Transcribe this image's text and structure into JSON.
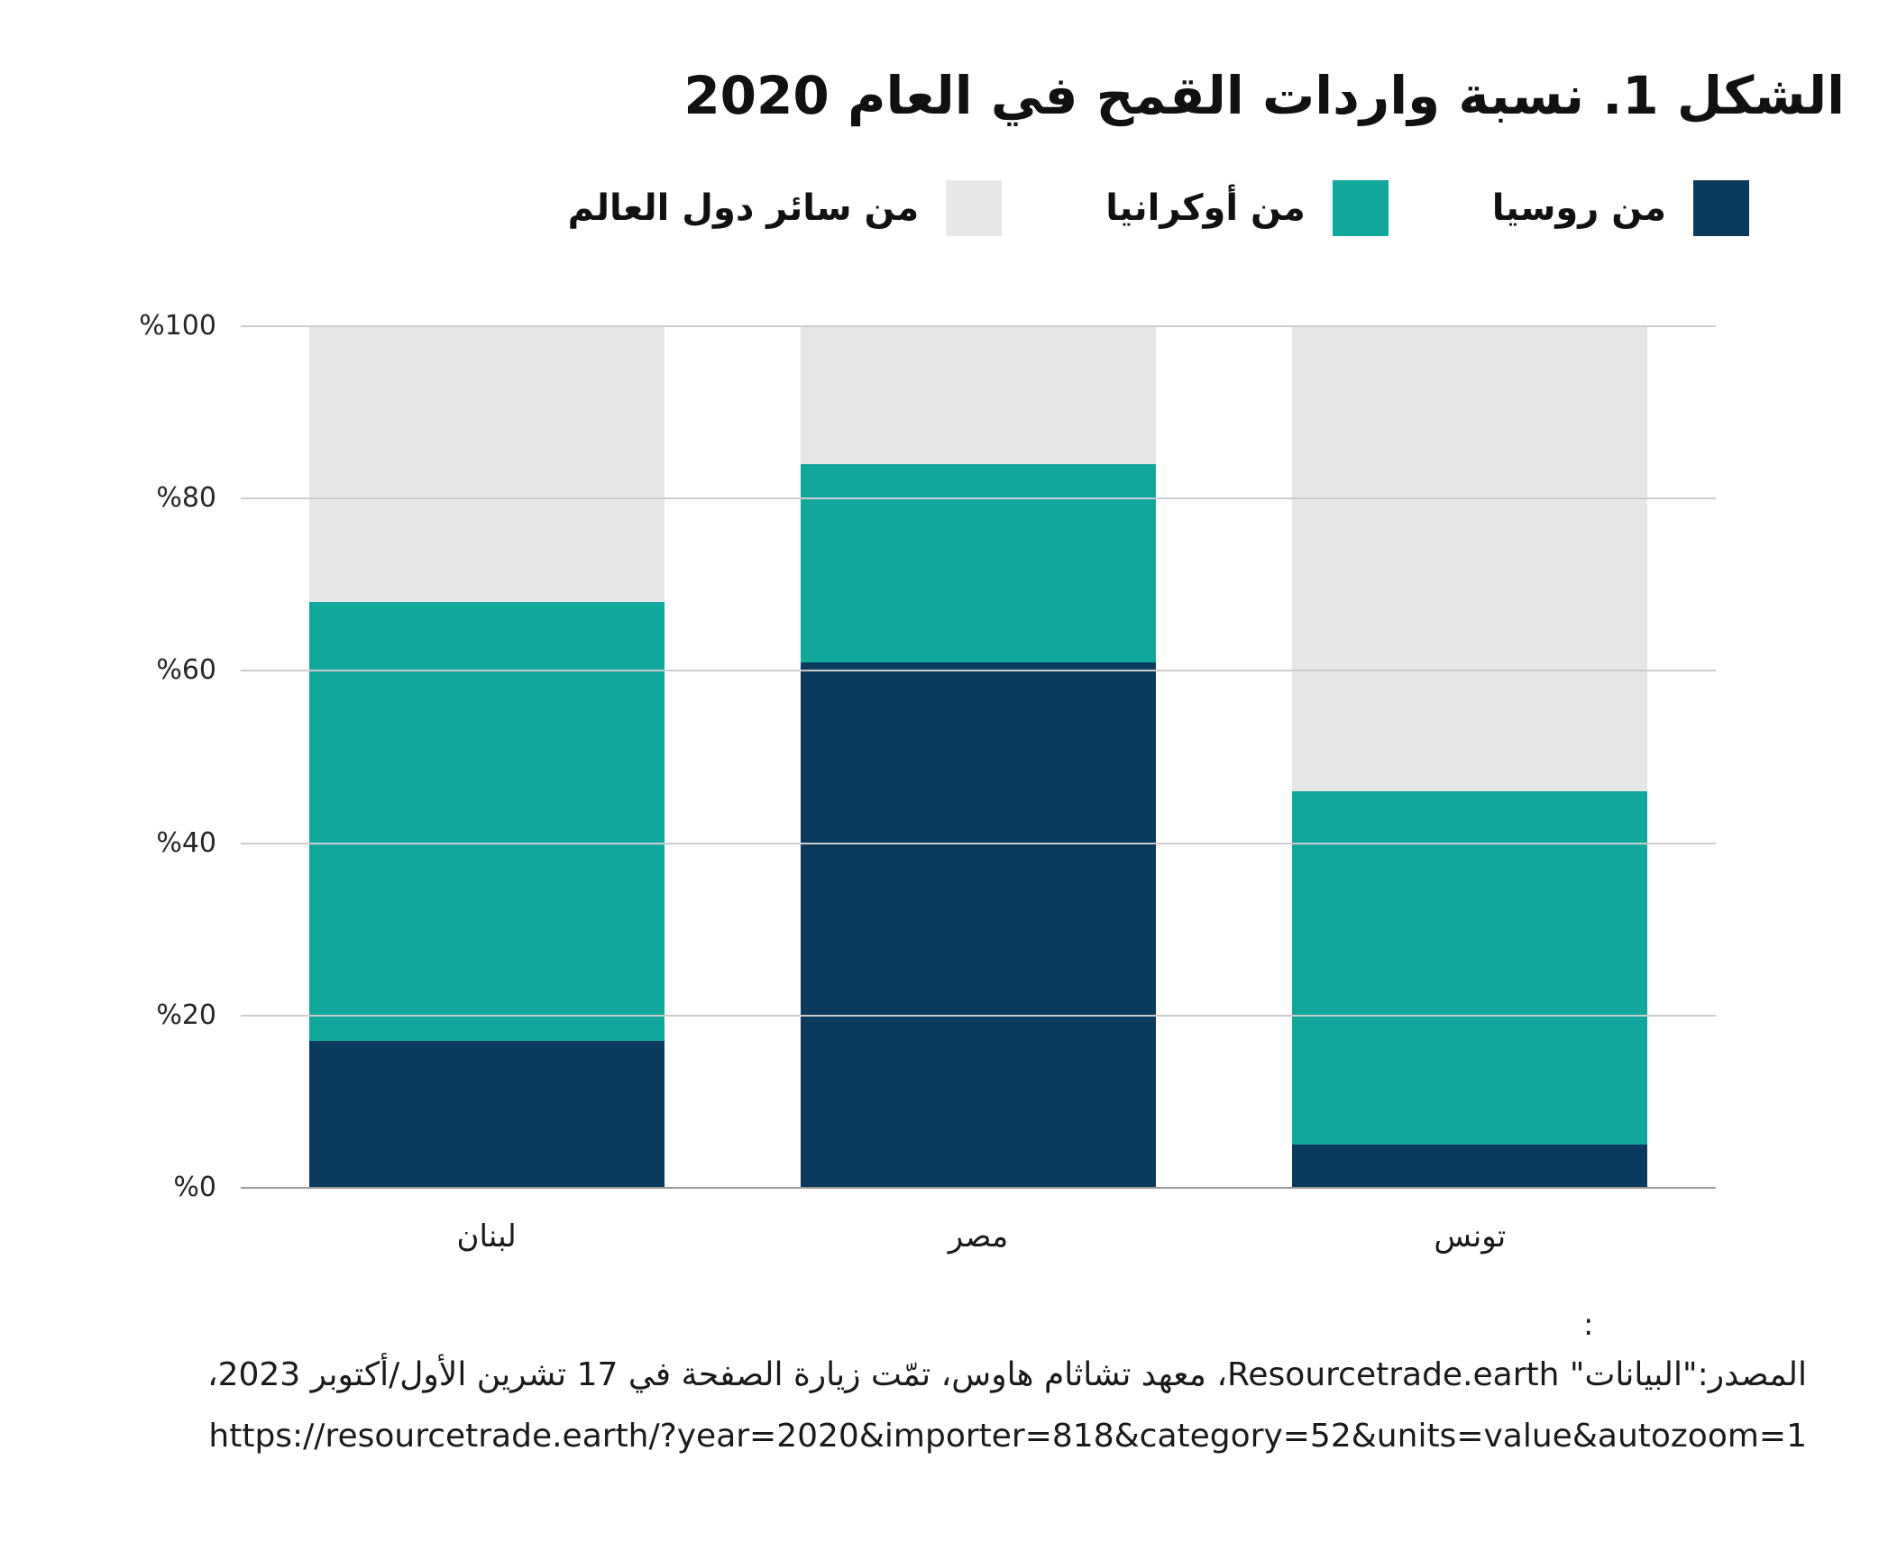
{
  "title": "الشكل 1. نسبة واردات القمح في العام 2020",
  "chart_data": {
    "type": "bar",
    "stacked": true,
    "title": "الشكل 1. نسبة واردات القمح في العام 2020",
    "categories": [
      "لبنان",
      "مصر",
      "تونس"
    ],
    "series": [
      {
        "name": "من روسيا",
        "color": "#0a3a5e",
        "values": [
          17,
          61,
          5
        ]
      },
      {
        "name": "من أوكرانيا",
        "color": "#12a79d",
        "values": [
          51,
          23,
          41
        ]
      },
      {
        "name": "من سائر دول العالم",
        "color": "#e6e7e9",
        "values": [
          32,
          16,
          54
        ]
      }
    ],
    "ylabel": "",
    "xlabel": "",
    "ylim": [
      0,
      100
    ],
    "unit": "percent",
    "grid": true,
    "legend_position": "top-right",
    "y_ticks": [
      {
        "value": 100,
        "label": "%100"
      },
      {
        "value": 80,
        "label": "%80"
      },
      {
        "value": 60,
        "label": "%60"
      },
      {
        "value": 40,
        "label": "%40"
      },
      {
        "value": 20,
        "label": "%20"
      },
      {
        "value": 0,
        "label": "%0"
      }
    ]
  },
  "source": {
    "colon": ":",
    "line1": "المصدر:\"البيانات\" Resourcetrade.earth، معهد تشاثام هاوس، تمّت زيارة الصفحة في 17 تشرين الأول/أكتوبر 2023،",
    "line2": "https://resourcetrade.earth/?year=2020&importer=818&category=52&units=value&autozoom=1"
  },
  "colors": {
    "grid": "#cccccc",
    "axis": "#9a9a9a",
    "text": "#1a1a1a"
  }
}
